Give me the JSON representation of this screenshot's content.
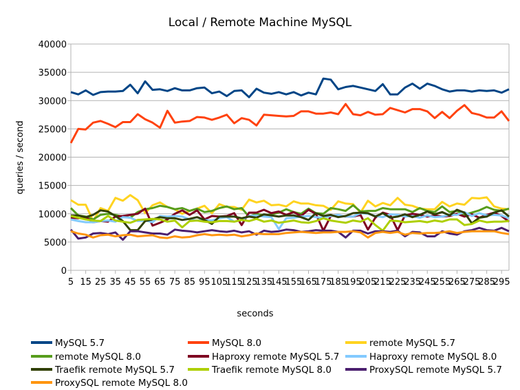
{
  "chart_data": {
    "type": "line",
    "title": "Local / Remote Machine MySQL",
    "xlabel": "seconds",
    "ylabel": "queries / second",
    "ylim": [
      0,
      40000
    ],
    "yticks": [
      0,
      5000,
      10000,
      15000,
      20000,
      25000,
      30000,
      35000,
      40000
    ],
    "xlim": [
      5,
      300
    ],
    "xticks": [
      5,
      15,
      25,
      35,
      45,
      55,
      65,
      75,
      85,
      95,
      105,
      115,
      125,
      135,
      145,
      155,
      165,
      175,
      185,
      195,
      205,
      215,
      225,
      235,
      245,
      255,
      265,
      275,
      285,
      295
    ],
    "grid": "horizontal",
    "legend": "bottom",
    "x": [
      5,
      10,
      15,
      20,
      25,
      30,
      35,
      40,
      45,
      50,
      55,
      60,
      65,
      70,
      75,
      80,
      85,
      90,
      95,
      100,
      105,
      110,
      115,
      120,
      125,
      130,
      135,
      140,
      145,
      150,
      155,
      160,
      165,
      170,
      175,
      180,
      185,
      190,
      195,
      200,
      205,
      210,
      215,
      220,
      225,
      230,
      235,
      240,
      245,
      250,
      255,
      260,
      265,
      270,
      275,
      280,
      285,
      290,
      295,
      300
    ],
    "series": [
      {
        "name": "MySQL 5.7",
        "color": "#004586",
        "values": [
          31500,
          31100,
          31800,
          31000,
          31500,
          31600,
          31600,
          31700,
          32800,
          31300,
          33400,
          31900,
          32000,
          31700,
          32200,
          31800,
          31800,
          32200,
          32300,
          31300,
          31600,
          30800,
          31700,
          31800,
          30600,
          32100,
          31400,
          31200,
          31500,
          31100,
          31500,
          30900,
          31400,
          31100,
          33900,
          33700,
          32000,
          32400,
          32600,
          32300,
          32000,
          31700,
          32900,
          31100,
          31100,
          32300,
          33000,
          32100,
          33000,
          32600,
          32000,
          31600,
          31800,
          31800,
          31600,
          31800,
          31700,
          31800,
          31400,
          32000
        ]
      },
      {
        "name": "MySQL 8.0",
        "color": "#ff420e",
        "values": [
          22500,
          25000,
          24900,
          26100,
          26400,
          25900,
          25300,
          26200,
          26200,
          27600,
          26700,
          26100,
          25200,
          28200,
          26100,
          26300,
          26400,
          27100,
          27000,
          26600,
          27000,
          27500,
          26000,
          26900,
          26600,
          25600,
          27500,
          27400,
          27300,
          27200,
          27300,
          28100,
          28100,
          27700,
          27700,
          27900,
          27600,
          29400,
          27600,
          27400,
          28000,
          27500,
          27600,
          28700,
          28300,
          27900,
          28500,
          28500,
          28100,
          26900,
          28000,
          26900,
          28200,
          29200,
          27800,
          27500,
          27000,
          27000,
          28100,
          26400
        ]
      },
      {
        "name": "remote MySQL 5.7",
        "color": "#ffd320",
        "values": [
          12400,
          11600,
          11600,
          8700,
          11000,
          10500,
          12800,
          12300,
          13300,
          12400,
          10100,
          11500,
          12000,
          11200,
          10800,
          10000,
          10500,
          10900,
          11400,
          10100,
          11700,
          11200,
          11200,
          10700,
          12500,
          12000,
          12300,
          11500,
          11600,
          11300,
          12200,
          11800,
          11800,
          11500,
          11400,
          10700,
          12200,
          11800,
          11700,
          10200,
          12300,
          11300,
          11900,
          11500,
          12800,
          11600,
          11400,
          10900,
          10800,
          10800,
          12100,
          11300,
          11800,
          11600,
          12800,
          12700,
          12900,
          11300,
          10900,
          10800
        ]
      },
      {
        "name": "remote MySQL 8.0",
        "color": "#579d1c",
        "values": [
          11000,
          9700,
          9500,
          9000,
          9800,
          10000,
          9800,
          9500,
          9300,
          10300,
          10800,
          11000,
          11400,
          11200,
          10800,
          11000,
          10500,
          10900,
          10300,
          10500,
          11000,
          11300,
          10800,
          11000,
          9500,
          10000,
          9700,
          9900,
          10200,
          10800,
          10300,
          10000,
          10900,
          10100,
          10000,
          11000,
          10800,
          10500,
          11500,
          10400,
          10500,
          10500,
          11000,
          10800,
          10800,
          10800,
          10300,
          11000,
          10500,
          10300,
          11300,
          10300,
          10500,
          9800,
          10200,
          10600,
          11200,
          10700,
          10500,
          10900
        ]
      },
      {
        "name": "Haproxy remote MySQL 5.7",
        "color": "#7e0021",
        "values": [
          9300,
          9200,
          9400,
          8500,
          8700,
          8600,
          9500,
          9600,
          9800,
          10000,
          10900,
          7900,
          8400,
          9000,
          10000,
          10600,
          9800,
          10600,
          9000,
          9600,
          9500,
          9600,
          10100,
          8000,
          10200,
          10200,
          10700,
          10100,
          10400,
          9800,
          10300,
          9600,
          10700,
          10000,
          7000,
          9600,
          9700,
          9500,
          9500,
          9800,
          7200,
          9300,
          10200,
          9800,
          7100,
          9700,
          10000,
          9800,
          9500,
          9700,
          9500,
          9600,
          10000,
          9500,
          9900,
          9300,
          9800,
          10200,
          9600,
          8600
        ]
      },
      {
        "name": "Haproxy remote MySQL 8.0",
        "color": "#83caff",
        "values": [
          9000,
          8700,
          8500,
          8500,
          8700,
          8800,
          8600,
          9400,
          9300,
          8700,
          8800,
          8500,
          9600,
          9500,
          9600,
          9500,
          9000,
          8800,
          8900,
          8800,
          9200,
          9400,
          8600,
          8900,
          9600,
          9700,
          9500,
          9400,
          7300,
          9200,
          9300,
          9500,
          9600,
          9400,
          9300,
          9600,
          9800,
          9500,
          9500,
          10100,
          10000,
          9600,
          9400,
          9900,
          9800,
          9500,
          9600,
          9300,
          9700,
          9400,
          9500,
          9800,
          9800,
          10300,
          9600,
          10100,
          9700,
          9800,
          9700,
          9200
        ]
      },
      {
        "name": "Traefik remote MySQL 5.7",
        "color": "#314004",
        "values": [
          9700,
          9700,
          9400,
          9800,
          10600,
          10400,
          9600,
          8700,
          7100,
          7100,
          8700,
          9000,
          9400,
          9200,
          9200,
          8900,
          9100,
          9400,
          8900,
          8200,
          9500,
          9500,
          9500,
          9200,
          9500,
          9300,
          9900,
          9700,
          9500,
          9700,
          9700,
          9400,
          8900,
          10100,
          9600,
          9800,
          9400,
          9600,
          10100,
          10200,
          10100,
          9500,
          10100,
          9300,
          9500,
          9900,
          9400,
          9800,
          10400,
          9900,
          10300,
          9700,
          10700,
          10200,
          8300,
          9300,
          9500,
          10200,
          10600,
          9500
        ]
      },
      {
        "name": "Traefik remote MySQL 8.0",
        "color": "#aecf00",
        "values": [
          9600,
          9300,
          9000,
          8800,
          8700,
          9600,
          8800,
          8600,
          8400,
          8900,
          9000,
          9100,
          9000,
          8600,
          8800,
          7600,
          8700,
          8800,
          8600,
          8500,
          8700,
          8700,
          8600,
          8900,
          8700,
          9100,
          8600,
          8800,
          8400,
          8600,
          8800,
          8500,
          8400,
          8700,
          9200,
          8800,
          8600,
          8400,
          8800,
          8600,
          9200,
          8000,
          7000,
          8800,
          8700,
          8500,
          8600,
          8700,
          8500,
          8800,
          8600,
          9000,
          9000,
          8000,
          8200,
          8800,
          8500,
          8600,
          8600,
          8700
        ]
      },
      {
        "name": "ProxySQL remote MySQL 5.7",
        "color": "#4b1f6f",
        "values": [
          7200,
          5600,
          5800,
          6500,
          6600,
          6400,
          6700,
          5400,
          6900,
          6900,
          6700,
          6500,
          6500,
          6300,
          7200,
          7000,
          6900,
          6700,
          6900,
          7100,
          6900,
          6800,
          7000,
          6700,
          6900,
          6300,
          7000,
          6800,
          6900,
          7200,
          7100,
          6800,
          6900,
          7100,
          7000,
          7000,
          6800,
          5800,
          7000,
          7000,
          6500,
          6900,
          6900,
          6800,
          7000,
          6000,
          6800,
          6700,
          6000,
          6000,
          6900,
          6500,
          6300,
          6900,
          7100,
          7500,
          7100,
          7000,
          7500,
          6900
        ]
      },
      {
        "name": "ProxySQL remote MySQL 8.0",
        "color": "#ff950e",
        "values": [
          6900,
          6500,
          6300,
          5800,
          6200,
          6300,
          6000,
          6200,
          6300,
          6000,
          6100,
          6200,
          5800,
          5700,
          6000,
          5800,
          5900,
          6200,
          6400,
          6200,
          6300,
          6200,
          6300,
          6000,
          6200,
          6500,
          6400,
          6400,
          6400,
          6600,
          6700,
          6800,
          6700,
          6600,
          6700,
          6700,
          6800,
          6800,
          6900,
          6700,
          5800,
          6600,
          6800,
          6600,
          6800,
          6300,
          6600,
          6500,
          6600,
          6600,
          6700,
          6900,
          6600,
          6800,
          6900,
          6900,
          6900,
          6900,
          6600,
          6400
        ]
      }
    ]
  }
}
